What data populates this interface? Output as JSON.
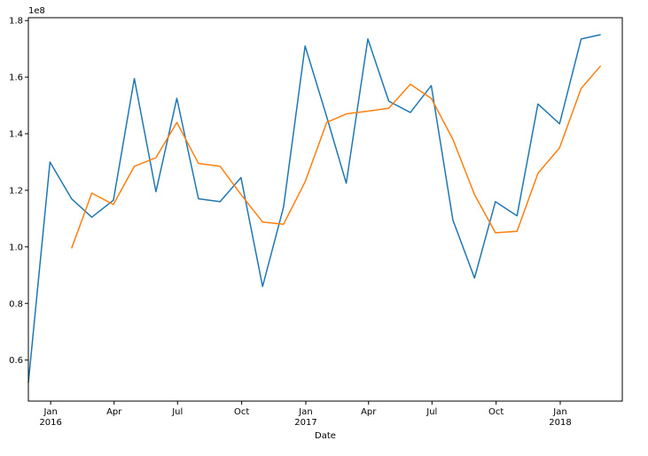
{
  "chart_data": {
    "type": "line",
    "title": "",
    "xlabel": "Date",
    "ylabel": "",
    "y_offset_text": "1e8",
    "y_scale_factor": 100000000,
    "ylim": [
      45500000,
      181000000
    ],
    "xlim": [
      "2015-11-30",
      "2018-03-31"
    ],
    "grid": false,
    "legend": "none",
    "x": [
      "2015-11-30",
      "2015-12-31",
      "2016-01-31",
      "2016-02-29",
      "2016-03-31",
      "2016-04-30",
      "2016-05-31",
      "2016-06-30",
      "2016-07-31",
      "2016-08-31",
      "2016-09-30",
      "2016-10-31",
      "2016-11-30",
      "2016-12-31",
      "2017-01-31",
      "2017-02-28",
      "2017-03-31",
      "2017-04-30",
      "2017-05-31",
      "2017-06-30",
      "2017-07-31",
      "2017-08-31",
      "2017-09-30",
      "2017-10-31",
      "2017-11-30",
      "2017-12-31",
      "2018-01-31",
      "2018-02-28",
      "2018-03-31"
    ],
    "x_ticks": [
      {
        "date": "2016-01-01",
        "label": "Jan",
        "sublabel": "2016"
      },
      {
        "date": "2016-04-01",
        "label": "Apr",
        "sublabel": ""
      },
      {
        "date": "2016-07-01",
        "label": "Jul",
        "sublabel": ""
      },
      {
        "date": "2016-10-01",
        "label": "Oct",
        "sublabel": ""
      },
      {
        "date": "2017-01-01",
        "label": "Jan",
        "sublabel": "2017"
      },
      {
        "date": "2017-04-01",
        "label": "Apr",
        "sublabel": ""
      },
      {
        "date": "2017-07-01",
        "label": "Jul",
        "sublabel": ""
      },
      {
        "date": "2017-10-01",
        "label": "Oct",
        "sublabel": ""
      },
      {
        "date": "2018-01-01",
        "label": "Jan",
        "sublabel": "2018"
      }
    ],
    "y_ticks": [
      {
        "value": 60000000,
        "label": "0.6"
      },
      {
        "value": 80000000,
        "label": "0.8"
      },
      {
        "value": 100000000,
        "label": "1.0"
      },
      {
        "value": 120000000,
        "label": "1.2"
      },
      {
        "value": 140000000,
        "label": "1.4"
      },
      {
        "value": 160000000,
        "label": "1.6"
      },
      {
        "value": 180000000,
        "label": "1.8"
      }
    ],
    "series": [
      {
        "color": "#1f77b4",
        "values": [
          52000000,
          130000000,
          117000000,
          110500000,
          116500000,
          159500000,
          119500000,
          152500000,
          117000000,
          116000000,
          124500000,
          86000000,
          114000000,
          171000000,
          146000000,
          122500000,
          173500000,
          151500000,
          147500000,
          157000000,
          109500000,
          89000000,
          116000000,
          111000000,
          150500000,
          143500000,
          173500000,
          175000000,
          null
        ]
      },
      {
        "color": "#ff7f0e",
        "values": [
          null,
          null,
          99500000,
          119000000,
          115000000,
          128500000,
          131500000,
          144000000,
          129500000,
          128500000,
          118500000,
          108800000,
          108000000,
          123000000,
          144000000,
          147000000,
          148000000,
          149000000,
          157500000,
          152500000,
          138000000,
          118500000,
          105000000,
          105500000,
          126000000,
          135000000,
          156000000,
          164000000,
          null
        ]
      }
    ]
  }
}
